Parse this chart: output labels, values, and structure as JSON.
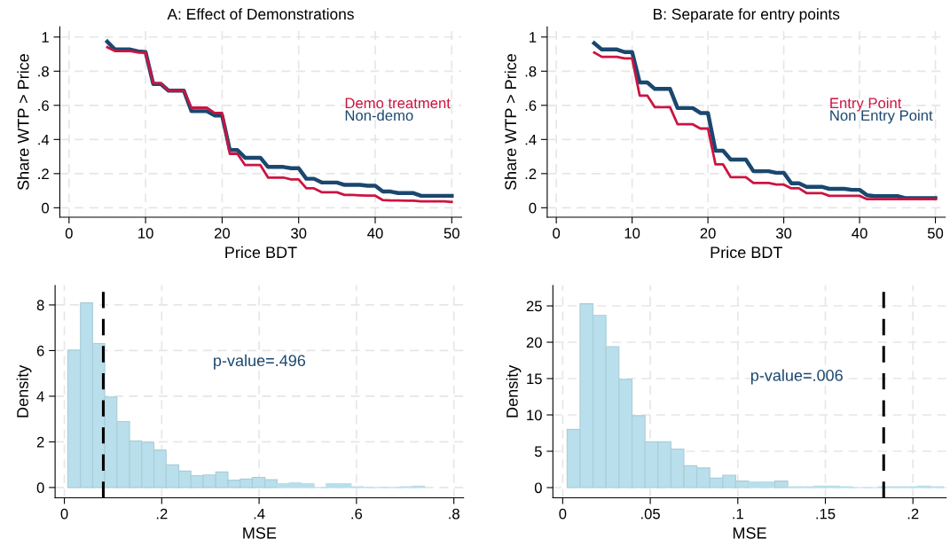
{
  "chart_data": [
    {
      "type": "line",
      "title": "A: Effect of Demonstrations",
      "xlabel": "Price BDT",
      "ylabel": "Share WTP > Price",
      "x": [
        5,
        6,
        7,
        8,
        9,
        10,
        11,
        12,
        13,
        14,
        15,
        16,
        17,
        18,
        19,
        20,
        21,
        22,
        23,
        24,
        25,
        26,
        27,
        28,
        29,
        30,
        31,
        32,
        33,
        34,
        35,
        36,
        37,
        38,
        39,
        40,
        41,
        42,
        43,
        44,
        45,
        46,
        47,
        48,
        49,
        50
      ],
      "series": [
        {
          "name": "Demo treatment",
          "color": "#cc1442",
          "values": [
            0.94,
            0.918,
            0.918,
            0.918,
            0.91,
            0.91,
            0.73,
            0.73,
            0.686,
            0.686,
            0.686,
            0.586,
            0.586,
            0.586,
            0.555,
            0.555,
            0.316,
            0.316,
            0.25,
            0.25,
            0.25,
            0.177,
            0.177,
            0.177,
            0.166,
            0.166,
            0.114,
            0.114,
            0.091,
            0.091,
            0.091,
            0.075,
            0.075,
            0.073,
            0.071,
            0.071,
            0.045,
            0.043,
            0.043,
            0.042,
            0.041,
            0.038,
            0.038,
            0.038,
            0.038,
            0.034
          ]
        },
        {
          "name": "Non-demo",
          "color": "#1a476f",
          "values": [
            0.973,
            0.927,
            0.927,
            0.927,
            0.916,
            0.912,
            0.725,
            0.725,
            0.686,
            0.686,
            0.686,
            0.566,
            0.566,
            0.566,
            0.541,
            0.541,
            0.338,
            0.338,
            0.293,
            0.293,
            0.293,
            0.239,
            0.239,
            0.239,
            0.232,
            0.232,
            0.17,
            0.17,
            0.148,
            0.148,
            0.148,
            0.134,
            0.134,
            0.134,
            0.129,
            0.129,
            0.095,
            0.095,
            0.086,
            0.086,
            0.086,
            0.07,
            0.07,
            0.07,
            0.07,
            0.07
          ]
        }
      ],
      "xlim": [
        -1.2,
        51.3
      ],
      "xticks": [
        0,
        10,
        20,
        30,
        40,
        50
      ],
      "ylim": [
        -0.055,
        1.06
      ],
      "yticks": [
        0,
        {
          "value": 0.2,
          "label": ".2"
        },
        {
          "value": 0.4,
          "label": ".4"
        },
        {
          "value": 0.6,
          "label": ".6"
        },
        {
          "value": 0.8,
          "label": ".8"
        },
        1
      ],
      "grid": true,
      "legend": "right",
      "line_style": "solid",
      "marker": "none"
    },
    {
      "type": "line",
      "title": "B: Separate for entry points",
      "xlabel": "Price BDT",
      "ylabel": "Share WTP > Price",
      "x": [
        5,
        6,
        7,
        8,
        9,
        10,
        11,
        12,
        13,
        14,
        15,
        16,
        17,
        18,
        19,
        20,
        21,
        22,
        23,
        24,
        25,
        26,
        27,
        28,
        29,
        30,
        31,
        32,
        33,
        34,
        35,
        36,
        37,
        38,
        39,
        40,
        41,
        42,
        43,
        44,
        45,
        46,
        47,
        48,
        49,
        50
      ],
      "series": [
        {
          "name": "Entry Point",
          "color": "#cc1442",
          "values": [
            0.909,
            0.884,
            0.884,
            0.884,
            0.875,
            0.875,
            0.657,
            0.657,
            0.589,
            0.589,
            0.589,
            0.489,
            0.489,
            0.489,
            0.464,
            0.464,
            0.254,
            0.254,
            0.179,
            0.179,
            0.179,
            0.145,
            0.145,
            0.145,
            0.136,
            0.136,
            0.114,
            0.114,
            0.086,
            0.086,
            0.086,
            0.07,
            0.07,
            0.07,
            0.07,
            0.07,
            0.05,
            0.05,
            0.05,
            0.05,
            0.05,
            0.05,
            0.05,
            0.05,
            0.05,
            0.05
          ]
        },
        {
          "name": "Non Entry Point",
          "color": "#1a476f",
          "values": [
            0.964,
            0.927,
            0.927,
            0.927,
            0.912,
            0.912,
            0.734,
            0.734,
            0.696,
            0.696,
            0.696,
            0.584,
            0.584,
            0.584,
            0.555,
            0.555,
            0.334,
            0.334,
            0.282,
            0.282,
            0.282,
            0.214,
            0.214,
            0.214,
            0.205,
            0.205,
            0.143,
            0.143,
            0.123,
            0.123,
            0.123,
            0.111,
            0.111,
            0.111,
            0.105,
            0.105,
            0.073,
            0.068,
            0.068,
            0.068,
            0.068,
            0.057,
            0.057,
            0.057,
            0.057,
            0.057
          ]
        }
      ],
      "xlim": [
        -1.2,
        51.3
      ],
      "xticks": [
        0,
        10,
        20,
        30,
        40,
        50
      ],
      "ylim": [
        -0.055,
        1.06
      ],
      "yticks": [
        0,
        {
          "value": 0.2,
          "label": ".2"
        },
        {
          "value": 0.4,
          "label": ".4"
        },
        {
          "value": 0.6,
          "label": ".6"
        },
        {
          "value": 0.8,
          "label": ".8"
        },
        1
      ],
      "grid": true,
      "legend": "right",
      "line_style": "solid",
      "marker": "none"
    },
    {
      "type": "histogram",
      "xlabel": "MSE",
      "ylabel": "Density",
      "bins": [
        0.007,
        0.033,
        0.058,
        0.083,
        0.108,
        0.134,
        0.159,
        0.184,
        0.209,
        0.235,
        0.26,
        0.285,
        0.311,
        0.336,
        0.361,
        0.386,
        0.412,
        0.437,
        0.462,
        0.487,
        0.513,
        0.538,
        0.563,
        0.589,
        0.614,
        0.639,
        0.664,
        0.69,
        0.715,
        0.74
      ],
      "series": [
        {
          "color": "#b8dfeb",
          "values": [
            6.02,
            8.09,
            6.31,
            3.97,
            2.89,
            2.04,
            1.98,
            1.64,
            0.99,
            0.72,
            0.52,
            0.55,
            0.68,
            0.32,
            0.37,
            0.44,
            0.34,
            0.17,
            0.21,
            0.17,
            0,
            0.17,
            0.17,
            0.03,
            0,
            0,
            0,
            0.03,
            0.06
          ]
        }
      ],
      "xlim": [
        -0.019,
        0.82
      ],
      "xticks": [
        0,
        {
          "value": 0.2,
          "label": ".2"
        },
        {
          "value": 0.4,
          "label": ".4"
        },
        {
          "value": 0.6,
          "label": ".6"
        },
        {
          "value": 0.8,
          "label": ".8"
        }
      ],
      "ylim": [
        -0.45,
        8.85
      ],
      "yticks": [
        0,
        2,
        4,
        6,
        8
      ],
      "ref_lines": [
        {
          "axis": "x",
          "value": 0.08,
          "color": "#000000",
          "line_style": "dashed"
        }
      ],
      "annotations": [
        "p-value=.496"
      ],
      "grid": true
    },
    {
      "type": "histogram",
      "xlabel": "MSE",
      "ylabel": "Density",
      "bins": [
        0.0025,
        0.0099,
        0.0173,
        0.0247,
        0.0321,
        0.0396,
        0.047,
        0.0544,
        0.0618,
        0.0692,
        0.0766,
        0.084,
        0.0914,
        0.0988,
        0.1062,
        0.1137,
        0.1211,
        0.1285,
        0.1359,
        0.1433,
        0.1507,
        0.1581,
        0.1655,
        0.1729,
        0.1803,
        0.1878,
        0.1952,
        0.2026,
        0.21,
        0.2174
      ],
      "series": [
        {
          "color": "#b8dfeb",
          "values": [
            8.0,
            25.3,
            23.7,
            19.4,
            14.9,
            9.9,
            6.3,
            6.3,
            5.3,
            3.0,
            2.7,
            1.3,
            1.7,
            0.9,
            0.8,
            0.8,
            0.9,
            0.1,
            0.1,
            0.2,
            0.2,
            0.1,
            0,
            0,
            0.1,
            0.1,
            0.1,
            0.2,
            0.1
          ]
        }
      ],
      "xlim": [
        -0.0056,
        0.219
      ],
      "xticks": [
        0,
        {
          "value": 0.05,
          "label": ".05"
        },
        {
          "value": 0.1,
          "label": ".1"
        },
        {
          "value": 0.15,
          "label": ".15"
        },
        {
          "value": 0.2,
          "label": ".2"
        }
      ],
      "ylim": [
        -1.4,
        27.8
      ],
      "yticks": [
        0,
        5,
        10,
        15,
        20,
        25
      ],
      "ref_lines": [
        {
          "axis": "x",
          "value": 0.1833,
          "color": "#000000",
          "line_style": "dashed"
        }
      ],
      "annotations": [
        "p-value=.006"
      ],
      "grid": true
    }
  ]
}
